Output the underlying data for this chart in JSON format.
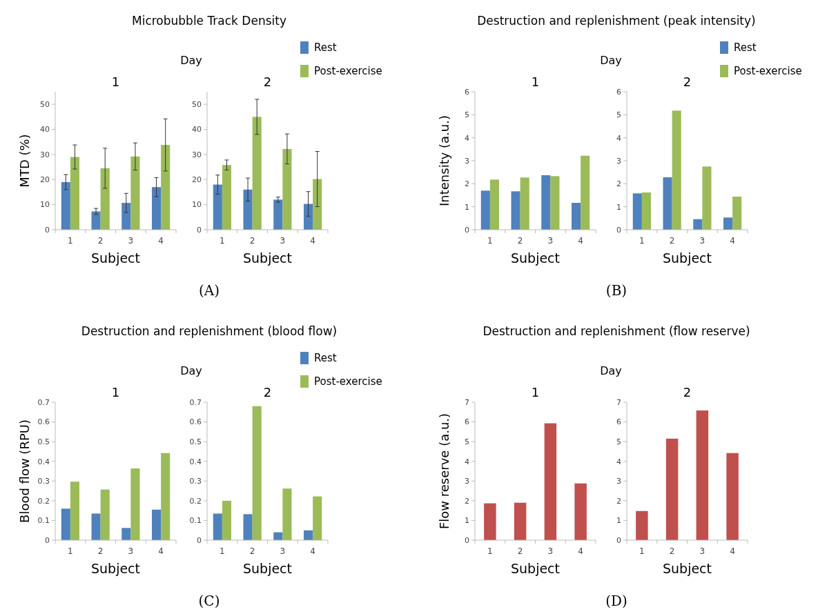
{
  "chart_data": [
    {
      "type": "bar",
      "title": "1",
      "annotations": [
        "Microbubble Track Density",
        "Day",
        "(A)"
      ],
      "xlabel": "Subject",
      "ylabel": "MTD (%)",
      "categories": [
        "1",
        "2",
        "3",
        "4"
      ],
      "ylim": [
        0,
        55
      ],
      "yticks": [
        0,
        10,
        20,
        30,
        40,
        50
      ],
      "series": [
        {
          "color": "#4f81bd",
          "values": [
            19,
            7.3,
            10.7,
            17
          ],
          "errors": [
            3,
            1.2,
            3.8,
            3.8
          ]
        },
        {
          "color": "#9bbb59",
          "values": [
            29,
            24.5,
            29.2,
            33.8
          ],
          "errors": [
            4.8,
            8,
            5.4,
            10.4
          ]
        }
      ]
    },
    {
      "type": "bar",
      "title": "2",
      "xlabel": "Subject",
      "categories": [
        "1",
        "2",
        "3",
        "4"
      ],
      "ylim": [
        0,
        55
      ],
      "yticks": [
        0,
        10,
        20,
        30,
        40,
        50
      ],
      "legend": "top right",
      "series": [
        {
          "name": "Rest",
          "color": "#4f81bd",
          "values": [
            18,
            16,
            12,
            10.3
          ],
          "errors": [
            3.8,
            4.6,
            1,
            4.9
          ]
        },
        {
          "name": "Post-exercise",
          "color": "#9bbb59",
          "values": [
            25.8,
            45,
            32.2,
            20.2
          ],
          "errors": [
            2,
            7,
            6,
            11
          ]
        }
      ]
    },
    {
      "type": "bar",
      "title": "1",
      "annotations": [
        "Destruction and replenishment (peak intensity)",
        "Day",
        "(B)"
      ],
      "xlabel": "Subject",
      "ylabel": "Intensity (a.u.)",
      "categories": [
        "1",
        "2",
        "3",
        "4"
      ],
      "ylim": [
        0,
        6
      ],
      "yticks": [
        0,
        1,
        2,
        3,
        4,
        5,
        6
      ],
      "series": [
        {
          "color": "#4f81bd",
          "values": [
            1.7,
            1.67,
            2.37,
            1.17
          ]
        },
        {
          "color": "#9bbb59",
          "values": [
            2.18,
            2.27,
            2.33,
            3.22
          ]
        }
      ]
    },
    {
      "type": "bar",
      "title": "2",
      "xlabel": "Subject",
      "categories": [
        "1",
        "2",
        "3",
        "4"
      ],
      "ylim": [
        0,
        6
      ],
      "yticks": [
        0,
        1,
        2,
        3,
        4,
        5,
        6
      ],
      "legend": "top right",
      "series": [
        {
          "name": "Rest",
          "color": "#4f81bd",
          "values": [
            1.58,
            2.28,
            0.46,
            0.53
          ]
        },
        {
          "name": "Post-exercise",
          "color": "#9bbb59",
          "values": [
            1.62,
            5.18,
            2.75,
            1.44
          ]
        }
      ]
    },
    {
      "type": "bar",
      "title": "1",
      "annotations": [
        "Destruction and replenishment (blood flow)",
        "Day",
        "(C)"
      ],
      "xlabel": "Subject",
      "ylabel": "Blood flow (RPU)",
      "categories": [
        "1",
        "2",
        "3",
        "4"
      ],
      "ylim": [
        0,
        0.7
      ],
      "yticks": [
        0,
        0.1,
        0.2,
        0.3,
        0.4,
        0.5,
        0.6,
        0.7
      ],
      "series": [
        {
          "color": "#4f81bd",
          "values": [
            0.16,
            0.135,
            0.062,
            0.155
          ]
        },
        {
          "color": "#9bbb59",
          "values": [
            0.297,
            0.257,
            0.364,
            0.442
          ]
        }
      ]
    },
    {
      "type": "bar",
      "title": "2",
      "xlabel": "Subject",
      "categories": [
        "1",
        "2",
        "3",
        "4"
      ],
      "ylim": [
        0,
        0.7
      ],
      "yticks": [
        0,
        0.1,
        0.2,
        0.3,
        0.4,
        0.5,
        0.6,
        0.7
      ],
      "legend": "top right",
      "series": [
        {
          "name": "Rest",
          "color": "#4f81bd",
          "values": [
            0.135,
            0.132,
            0.04,
            0.05
          ]
        },
        {
          "name": "Post-exercise",
          "color": "#9bbb59",
          "values": [
            0.2,
            0.68,
            0.262,
            0.222
          ]
        }
      ]
    },
    {
      "type": "bar",
      "title": "1",
      "annotations": [
        "Destruction and replenishment (flow reserve)",
        "Day",
        "(D)"
      ],
      "xlabel": "Subject",
      "ylabel": "Flow reserve (a.u.)",
      "categories": [
        "1",
        "2",
        "3",
        "4"
      ],
      "ylim": [
        0,
        7
      ],
      "yticks": [
        0,
        1,
        2,
        3,
        4,
        5,
        6,
        7
      ],
      "series": [
        {
          "color": "#c0504d",
          "values": [
            1.87,
            1.9,
            5.93,
            2.88
          ]
        }
      ]
    },
    {
      "type": "bar",
      "title": "2",
      "xlabel": "Subject",
      "categories": [
        "1",
        "2",
        "3",
        "4"
      ],
      "ylim": [
        0,
        7
      ],
      "yticks": [
        0,
        1,
        2,
        3,
        4,
        5,
        6,
        7
      ],
      "series": [
        {
          "color": "#c0504d",
          "values": [
            1.48,
            5.15,
            6.58,
            4.42
          ]
        }
      ]
    }
  ]
}
